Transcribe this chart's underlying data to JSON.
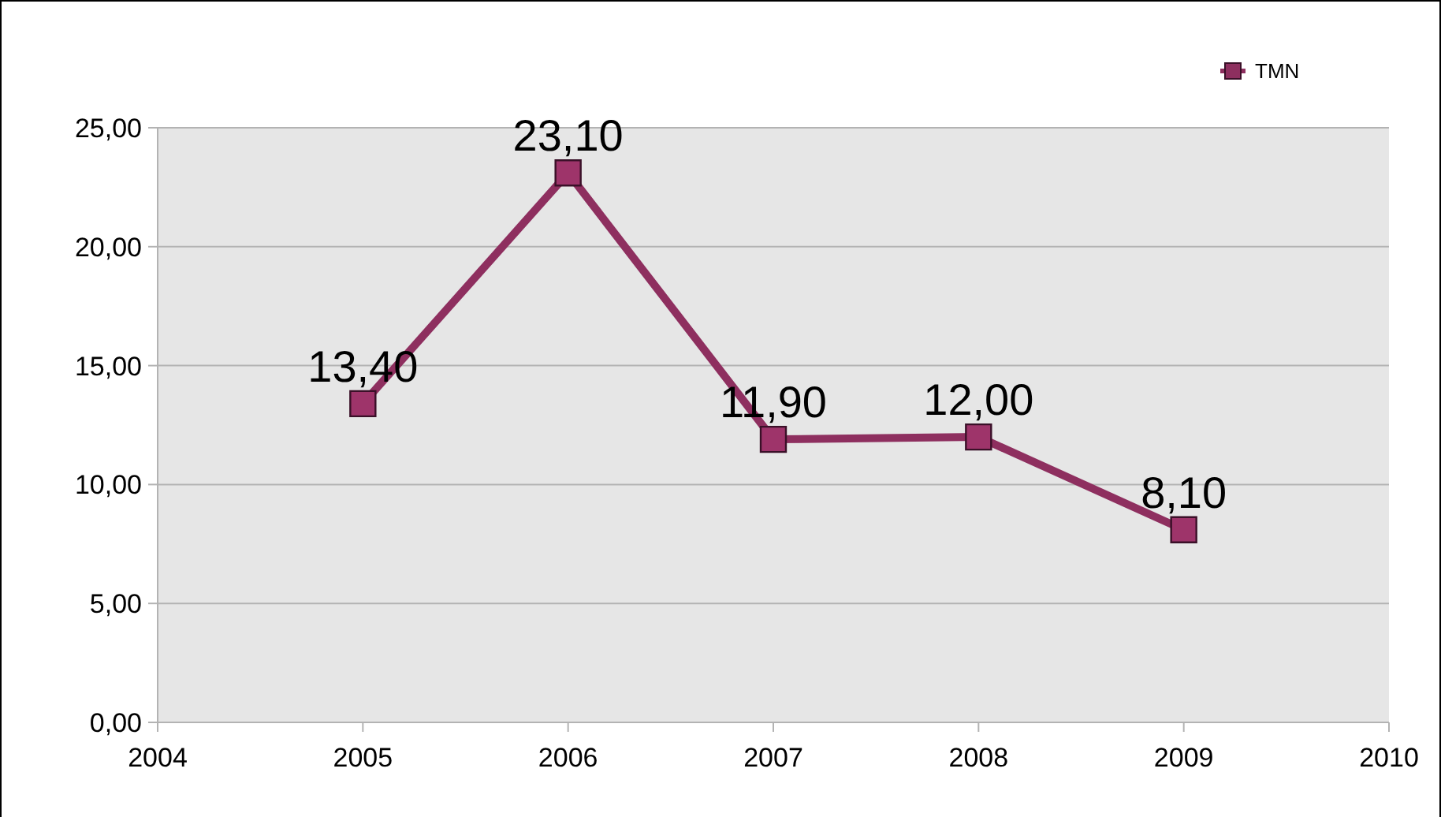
{
  "chart_data": {
    "type": "line",
    "x": [
      2005,
      2006,
      2007,
      2008,
      2009
    ],
    "series": [
      {
        "name": "TMN",
        "color": "#8e2f5f",
        "values": [
          13.4,
          23.1,
          11.9,
          12.0,
          8.1
        ],
        "value_labels": [
          "13,40",
          "23,10",
          "11,90",
          "12,00",
          "8,10"
        ]
      }
    ],
    "xlim": [
      2004,
      2010
    ],
    "xticks": [
      2004,
      2005,
      2006,
      2007,
      2008,
      2009,
      2010
    ],
    "ylim": [
      0,
      25
    ],
    "yticks": [
      {
        "value": 0,
        "label": "0,00"
      },
      {
        "value": 5,
        "label": "5,00"
      },
      {
        "value": 10,
        "label": "10,00"
      },
      {
        "value": 15,
        "label": "15,00"
      },
      {
        "value": 20,
        "label": "20,00"
      },
      {
        "value": 25,
        "label": "25,00"
      }
    ],
    "grid": "y",
    "legend": "top right",
    "marker": "square",
    "line_style": "solid"
  }
}
